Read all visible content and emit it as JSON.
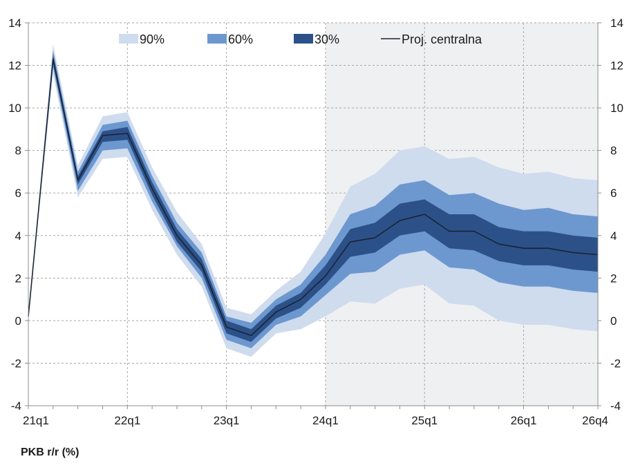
{
  "caption": "PKB r/r (%)",
  "chart_data": {
    "type": "area",
    "title": "",
    "xlabel": "",
    "ylabel": "PKB r/r (%)",
    "ylim": [
      -4,
      14
    ],
    "yticks": [
      -4,
      -2,
      0,
      2,
      4,
      6,
      8,
      10,
      12,
      14
    ],
    "grid": true,
    "x": [
      "21q1",
      "21q2",
      "21q3",
      "21q4",
      "22q1",
      "22q2",
      "22q3",
      "22q4",
      "23q1",
      "23q2",
      "23q3",
      "23q4",
      "24q1",
      "24q2",
      "24q3",
      "24q4",
      "25q1",
      "25q2",
      "25q3",
      "25q4",
      "26q1",
      "26q2",
      "26q3",
      "26q4"
    ],
    "xtick_labels": [
      "21q1",
      "22q1",
      "23q1",
      "24q1",
      "25q1",
      "26q1",
      "26q4"
    ],
    "projection_start": "24q1",
    "colors": {
      "band_90": "#cfdcee",
      "band_60": "#6d98cf",
      "band_30": "#2c5189",
      "central": "#1a2333",
      "projection_bg": "#eff0f2",
      "grid": "#a6a6a6",
      "axis": "#8c8c8c"
    },
    "legend": [
      {
        "key": "band_90",
        "label": "90%"
      },
      {
        "key": "band_60",
        "label": "60%"
      },
      {
        "key": "band_30",
        "label": "30%"
      },
      {
        "key": "central",
        "label": "Proj. centralna"
      }
    ],
    "legend_position": "top",
    "central": [
      0.2,
      12.3,
      6.6,
      8.7,
      8.8,
      6.2,
      4.0,
      2.6,
      -0.3,
      -0.7,
      0.4,
      1.0,
      2.1,
      3.7,
      3.9,
      4.7,
      5.0,
      4.2,
      4.2,
      3.6,
      3.4,
      3.4,
      3.2,
      3.1
    ],
    "band_90": {
      "lower": [
        0.2,
        11.6,
        5.8,
        7.6,
        7.7,
        5.2,
        3.1,
        1.6,
        -1.3,
        -1.7,
        -0.6,
        -0.4,
        0.2,
        0.9,
        0.8,
        1.5,
        1.7,
        0.8,
        0.7,
        0.0,
        -0.2,
        -0.2,
        -0.4,
        -0.5
      ],
      "upper": [
        0.2,
        13.0,
        7.3,
        9.6,
        9.8,
        7.2,
        5.1,
        3.6,
        0.6,
        0.3,
        1.4,
        2.3,
        4.1,
        6.3,
        6.9,
        8.0,
        8.2,
        7.6,
        7.7,
        7.2,
        6.9,
        7.0,
        6.7,
        6.6
      ]
    },
    "band_60": {
      "lower": [
        0.2,
        11.9,
        6.1,
        8.0,
        8.1,
        5.6,
        3.5,
        2.0,
        -0.9,
        -1.3,
        -0.2,
        0.2,
        1.2,
        2.2,
        2.3,
        3.1,
        3.3,
        2.5,
        2.4,
        1.8,
        1.6,
        1.6,
        1.4,
        1.3
      ],
      "upper": [
        0.2,
        12.7,
        7.0,
        9.2,
        9.4,
        6.8,
        4.6,
        3.2,
        0.2,
        -0.1,
        1.0,
        1.7,
        3.1,
        5.0,
        5.4,
        6.4,
        6.6,
        5.9,
        6.0,
        5.5,
        5.2,
        5.3,
        5.0,
        4.9
      ]
    },
    "band_30": {
      "lower": [
        0.2,
        12.1,
        6.4,
        8.4,
        8.5,
        5.9,
        3.7,
        2.3,
        -0.6,
        -1.0,
        0.1,
        0.6,
        1.7,
        3.0,
        3.2,
        4.0,
        4.2,
        3.4,
        3.3,
        2.8,
        2.6,
        2.6,
        2.4,
        2.3
      ],
      "upper": [
        0.2,
        12.5,
        6.8,
        8.9,
        9.1,
        6.5,
        4.3,
        2.9,
        0.0,
        -0.4,
        0.7,
        1.3,
        2.6,
        4.3,
        4.6,
        5.5,
        5.7,
        5.0,
        5.0,
        4.4,
        4.2,
        4.2,
        4.0,
        3.9
      ]
    }
  }
}
